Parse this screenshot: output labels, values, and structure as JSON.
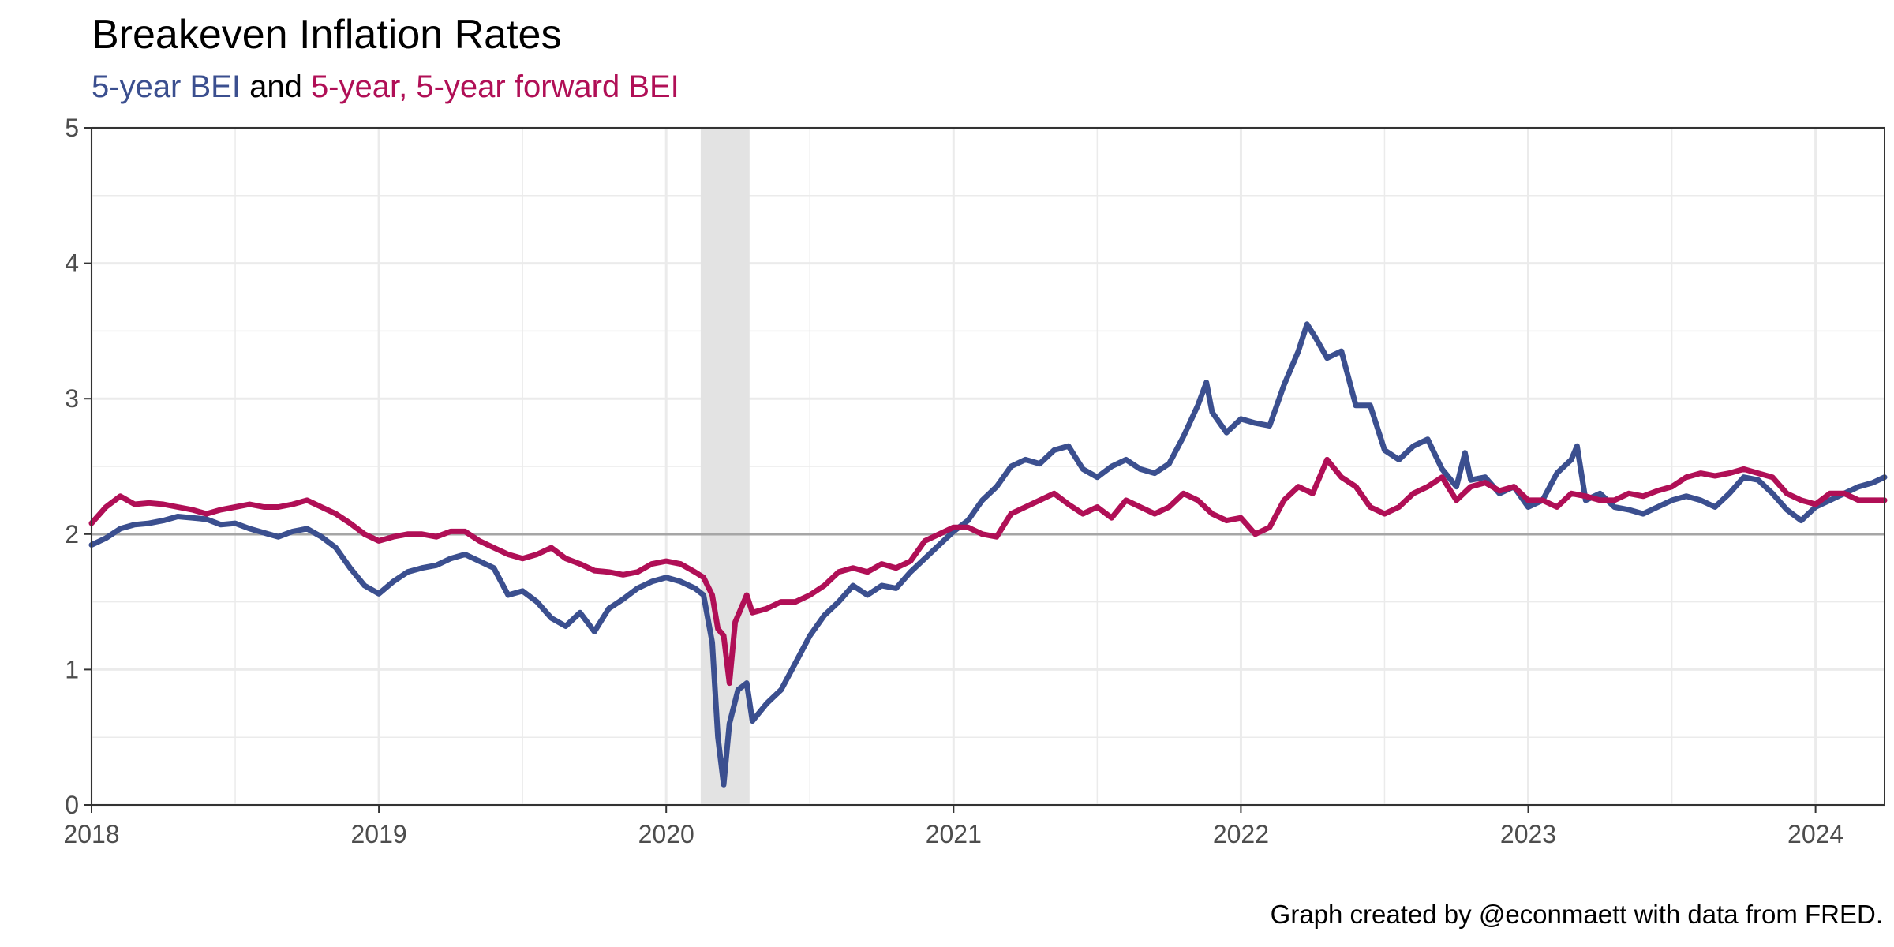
{
  "title": "Breakeven Inflation Rates",
  "subtitle": {
    "part1": "5-year BEI",
    "part2": " and ",
    "part3": "5-year, 5-year forward BEI"
  },
  "caption": "Graph created by @econmaett with data from FRED.",
  "colors": {
    "bei5": "#3b4f8f",
    "fwd5y5y": "#b00f56",
    "reference": "#a6a6a6",
    "recession": "#e3e3e3",
    "grid": "#ebebeb",
    "axis": "#333333"
  },
  "chart_data": {
    "type": "line",
    "x_unit": "year",
    "xlim": [
      2018.0,
      2024.24
    ],
    "ylim": [
      0,
      5
    ],
    "x_ticks": [
      2018,
      2019,
      2020,
      2021,
      2022,
      2023,
      2024
    ],
    "y_ticks": [
      0,
      1,
      2,
      3,
      4,
      5
    ],
    "grid": true,
    "reference_line": 2,
    "recession_band": [
      2020.12,
      2020.29
    ],
    "series": [
      {
        "name": "5-year BEI",
        "color": "#3b4f8f",
        "points": [
          [
            2018.0,
            1.92
          ],
          [
            2018.05,
            1.97
          ],
          [
            2018.1,
            2.04
          ],
          [
            2018.15,
            2.07
          ],
          [
            2018.2,
            2.08
          ],
          [
            2018.25,
            2.1
          ],
          [
            2018.3,
            2.13
          ],
          [
            2018.35,
            2.12
          ],
          [
            2018.4,
            2.11
          ],
          [
            2018.45,
            2.07
          ],
          [
            2018.5,
            2.08
          ],
          [
            2018.55,
            2.04
          ],
          [
            2018.6,
            2.01
          ],
          [
            2018.65,
            1.98
          ],
          [
            2018.7,
            2.02
          ],
          [
            2018.75,
            2.04
          ],
          [
            2018.8,
            1.98
          ],
          [
            2018.85,
            1.9
          ],
          [
            2018.9,
            1.75
          ],
          [
            2018.95,
            1.62
          ],
          [
            2019.0,
            1.56
          ],
          [
            2019.05,
            1.65
          ],
          [
            2019.1,
            1.72
          ],
          [
            2019.15,
            1.75
          ],
          [
            2019.2,
            1.77
          ],
          [
            2019.25,
            1.82
          ],
          [
            2019.3,
            1.85
          ],
          [
            2019.35,
            1.8
          ],
          [
            2019.4,
            1.75
          ],
          [
            2019.45,
            1.55
          ],
          [
            2019.5,
            1.58
          ],
          [
            2019.55,
            1.5
          ],
          [
            2019.6,
            1.38
          ],
          [
            2019.65,
            1.32
          ],
          [
            2019.7,
            1.42
          ],
          [
            2019.75,
            1.28
          ],
          [
            2019.8,
            1.45
          ],
          [
            2019.85,
            1.52
          ],
          [
            2019.9,
            1.6
          ],
          [
            2019.95,
            1.65
          ],
          [
            2020.0,
            1.68
          ],
          [
            2020.05,
            1.65
          ],
          [
            2020.1,
            1.6
          ],
          [
            2020.13,
            1.55
          ],
          [
            2020.16,
            1.2
          ],
          [
            2020.18,
            0.5
          ],
          [
            2020.2,
            0.15
          ],
          [
            2020.22,
            0.6
          ],
          [
            2020.25,
            0.85
          ],
          [
            2020.28,
            0.9
          ],
          [
            2020.3,
            0.62
          ],
          [
            2020.35,
            0.75
          ],
          [
            2020.4,
            0.85
          ],
          [
            2020.45,
            1.05
          ],
          [
            2020.5,
            1.25
          ],
          [
            2020.55,
            1.4
          ],
          [
            2020.6,
            1.5
          ],
          [
            2020.65,
            1.62
          ],
          [
            2020.7,
            1.55
          ],
          [
            2020.75,
            1.62
          ],
          [
            2020.8,
            1.6
          ],
          [
            2020.85,
            1.72
          ],
          [
            2020.9,
            1.82
          ],
          [
            2020.95,
            1.92
          ],
          [
            2021.0,
            2.02
          ],
          [
            2021.05,
            2.1
          ],
          [
            2021.1,
            2.25
          ],
          [
            2021.15,
            2.35
          ],
          [
            2021.2,
            2.5
          ],
          [
            2021.25,
            2.55
          ],
          [
            2021.3,
            2.52
          ],
          [
            2021.35,
            2.62
          ],
          [
            2021.4,
            2.65
          ],
          [
            2021.45,
            2.48
          ],
          [
            2021.5,
            2.42
          ],
          [
            2021.55,
            2.5
          ],
          [
            2021.6,
            2.55
          ],
          [
            2021.65,
            2.48
          ],
          [
            2021.7,
            2.45
          ],
          [
            2021.75,
            2.52
          ],
          [
            2021.8,
            2.72
          ],
          [
            2021.85,
            2.95
          ],
          [
            2021.88,
            3.12
          ],
          [
            2021.9,
            2.9
          ],
          [
            2021.95,
            2.75
          ],
          [
            2022.0,
            2.85
          ],
          [
            2022.05,
            2.82
          ],
          [
            2022.1,
            2.8
          ],
          [
            2022.15,
            3.1
          ],
          [
            2022.2,
            3.35
          ],
          [
            2022.23,
            3.55
          ],
          [
            2022.26,
            3.45
          ],
          [
            2022.3,
            3.3
          ],
          [
            2022.35,
            3.35
          ],
          [
            2022.4,
            2.95
          ],
          [
            2022.45,
            2.95
          ],
          [
            2022.5,
            2.62
          ],
          [
            2022.55,
            2.55
          ],
          [
            2022.6,
            2.65
          ],
          [
            2022.65,
            2.7
          ],
          [
            2022.7,
            2.48
          ],
          [
            2022.75,
            2.35
          ],
          [
            2022.78,
            2.6
          ],
          [
            2022.8,
            2.4
          ],
          [
            2022.85,
            2.42
          ],
          [
            2022.9,
            2.3
          ],
          [
            2022.95,
            2.35
          ],
          [
            2023.0,
            2.2
          ],
          [
            2023.05,
            2.25
          ],
          [
            2023.1,
            2.45
          ],
          [
            2023.15,
            2.55
          ],
          [
            2023.17,
            2.65
          ],
          [
            2023.2,
            2.25
          ],
          [
            2023.25,
            2.3
          ],
          [
            2023.3,
            2.2
          ],
          [
            2023.35,
            2.18
          ],
          [
            2023.4,
            2.15
          ],
          [
            2023.45,
            2.2
          ],
          [
            2023.5,
            2.25
          ],
          [
            2023.55,
            2.28
          ],
          [
            2023.6,
            2.25
          ],
          [
            2023.65,
            2.2
          ],
          [
            2023.7,
            2.3
          ],
          [
            2023.75,
            2.42
          ],
          [
            2023.8,
            2.4
          ],
          [
            2023.85,
            2.3
          ],
          [
            2023.9,
            2.18
          ],
          [
            2023.95,
            2.1
          ],
          [
            2024.0,
            2.2
          ],
          [
            2024.05,
            2.25
          ],
          [
            2024.1,
            2.3
          ],
          [
            2024.15,
            2.35
          ],
          [
            2024.2,
            2.38
          ],
          [
            2024.24,
            2.42
          ]
        ]
      },
      {
        "name": "5-year, 5-year forward BEI",
        "color": "#b00f56",
        "points": [
          [
            2018.0,
            2.08
          ],
          [
            2018.05,
            2.2
          ],
          [
            2018.1,
            2.28
          ],
          [
            2018.15,
            2.22
          ],
          [
            2018.2,
            2.23
          ],
          [
            2018.25,
            2.22
          ],
          [
            2018.3,
            2.2
          ],
          [
            2018.35,
            2.18
          ],
          [
            2018.4,
            2.15
          ],
          [
            2018.45,
            2.18
          ],
          [
            2018.5,
            2.2
          ],
          [
            2018.55,
            2.22
          ],
          [
            2018.6,
            2.2
          ],
          [
            2018.65,
            2.2
          ],
          [
            2018.7,
            2.22
          ],
          [
            2018.75,
            2.25
          ],
          [
            2018.8,
            2.2
          ],
          [
            2018.85,
            2.15
          ],
          [
            2018.9,
            2.08
          ],
          [
            2018.95,
            2.0
          ],
          [
            2019.0,
            1.95
          ],
          [
            2019.05,
            1.98
          ],
          [
            2019.1,
            2.0
          ],
          [
            2019.15,
            2.0
          ],
          [
            2019.2,
            1.98
          ],
          [
            2019.25,
            2.02
          ],
          [
            2019.3,
            2.02
          ],
          [
            2019.35,
            1.95
          ],
          [
            2019.4,
            1.9
          ],
          [
            2019.45,
            1.85
          ],
          [
            2019.5,
            1.82
          ],
          [
            2019.55,
            1.85
          ],
          [
            2019.6,
            1.9
          ],
          [
            2019.65,
            1.82
          ],
          [
            2019.7,
            1.78
          ],
          [
            2019.75,
            1.73
          ],
          [
            2019.8,
            1.72
          ],
          [
            2019.85,
            1.7
          ],
          [
            2019.9,
            1.72
          ],
          [
            2019.95,
            1.78
          ],
          [
            2020.0,
            1.8
          ],
          [
            2020.05,
            1.78
          ],
          [
            2020.1,
            1.72
          ],
          [
            2020.13,
            1.68
          ],
          [
            2020.16,
            1.55
          ],
          [
            2020.18,
            1.3
          ],
          [
            2020.2,
            1.25
          ],
          [
            2020.22,
            0.9
          ],
          [
            2020.24,
            1.35
          ],
          [
            2020.26,
            1.45
          ],
          [
            2020.28,
            1.55
          ],
          [
            2020.3,
            1.42
          ],
          [
            2020.35,
            1.45
          ],
          [
            2020.4,
            1.5
          ],
          [
            2020.45,
            1.5
          ],
          [
            2020.5,
            1.55
          ],
          [
            2020.55,
            1.62
          ],
          [
            2020.6,
            1.72
          ],
          [
            2020.65,
            1.75
          ],
          [
            2020.7,
            1.72
          ],
          [
            2020.75,
            1.78
          ],
          [
            2020.8,
            1.75
          ],
          [
            2020.85,
            1.8
          ],
          [
            2020.9,
            1.95
          ],
          [
            2020.95,
            2.0
          ],
          [
            2021.0,
            2.05
          ],
          [
            2021.05,
            2.05
          ],
          [
            2021.1,
            2.0
          ],
          [
            2021.15,
            1.98
          ],
          [
            2021.2,
            2.15
          ],
          [
            2021.25,
            2.2
          ],
          [
            2021.3,
            2.25
          ],
          [
            2021.35,
            2.3
          ],
          [
            2021.4,
            2.22
          ],
          [
            2021.45,
            2.15
          ],
          [
            2021.5,
            2.2
          ],
          [
            2021.55,
            2.12
          ],
          [
            2021.6,
            2.25
          ],
          [
            2021.65,
            2.2
          ],
          [
            2021.7,
            2.15
          ],
          [
            2021.75,
            2.2
          ],
          [
            2021.8,
            2.3
          ],
          [
            2021.85,
            2.25
          ],
          [
            2021.9,
            2.15
          ],
          [
            2021.95,
            2.1
          ],
          [
            2022.0,
            2.12
          ],
          [
            2022.05,
            2.0
          ],
          [
            2022.1,
            2.05
          ],
          [
            2022.15,
            2.25
          ],
          [
            2022.2,
            2.35
          ],
          [
            2022.25,
            2.3
          ],
          [
            2022.3,
            2.55
          ],
          [
            2022.35,
            2.42
          ],
          [
            2022.4,
            2.35
          ],
          [
            2022.45,
            2.2
          ],
          [
            2022.5,
            2.15
          ],
          [
            2022.55,
            2.2
          ],
          [
            2022.6,
            2.3
          ],
          [
            2022.65,
            2.35
          ],
          [
            2022.7,
            2.42
          ],
          [
            2022.75,
            2.25
          ],
          [
            2022.8,
            2.35
          ],
          [
            2022.85,
            2.38
          ],
          [
            2022.9,
            2.32
          ],
          [
            2022.95,
            2.35
          ],
          [
            2023.0,
            2.25
          ],
          [
            2023.05,
            2.25
          ],
          [
            2023.1,
            2.2
          ],
          [
            2023.15,
            2.3
          ],
          [
            2023.2,
            2.28
          ],
          [
            2023.25,
            2.25
          ],
          [
            2023.3,
            2.25
          ],
          [
            2023.35,
            2.3
          ],
          [
            2023.4,
            2.28
          ],
          [
            2023.45,
            2.32
          ],
          [
            2023.5,
            2.35
          ],
          [
            2023.55,
            2.42
          ],
          [
            2023.6,
            2.45
          ],
          [
            2023.65,
            2.43
          ],
          [
            2023.7,
            2.45
          ],
          [
            2023.75,
            2.48
          ],
          [
            2023.8,
            2.45
          ],
          [
            2023.85,
            2.42
          ],
          [
            2023.9,
            2.3
          ],
          [
            2023.95,
            2.25
          ],
          [
            2024.0,
            2.22
          ],
          [
            2024.05,
            2.3
          ],
          [
            2024.1,
            2.3
          ],
          [
            2024.15,
            2.25
          ],
          [
            2024.2,
            2.25
          ],
          [
            2024.24,
            2.25
          ]
        ]
      }
    ]
  }
}
